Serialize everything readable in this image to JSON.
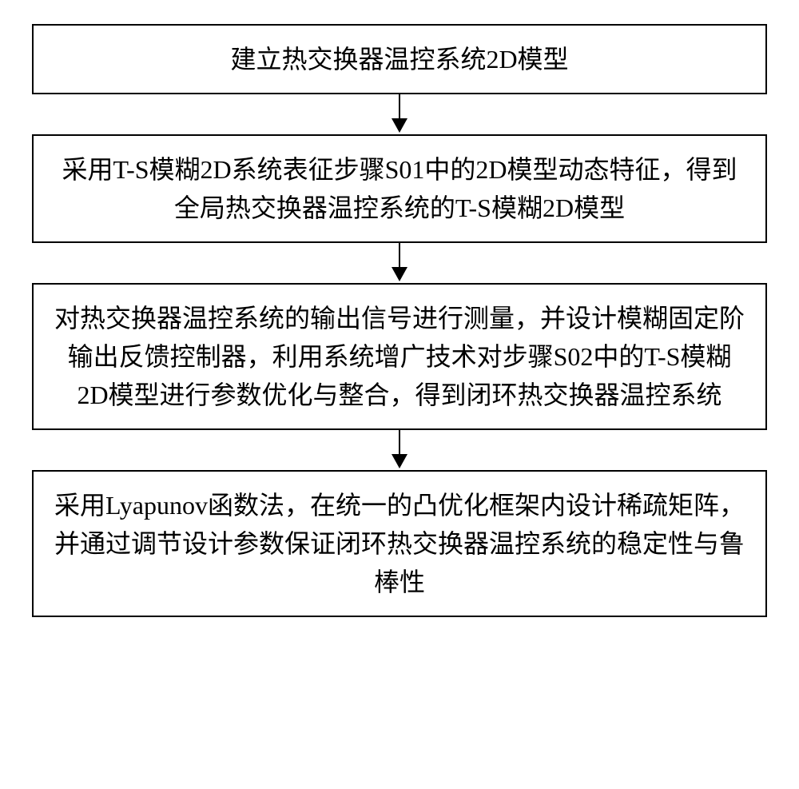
{
  "flowchart": {
    "type": "flowchart",
    "direction": "vertical",
    "background_color": "#ffffff",
    "box_border_color": "#000000",
    "box_border_width": 2,
    "box_background": "#ffffff",
    "text_color": "#000000",
    "font_size": 32,
    "font_family": "SimSun",
    "arrow_color": "#000000",
    "arrow_line_width": 2,
    "arrow_head_width": 20,
    "arrow_head_height": 18,
    "arrow_gap": 50,
    "nodes": [
      {
        "id": "step1",
        "text": "建立热交换器温控系统2D模型",
        "lines": 1
      },
      {
        "id": "step2",
        "text": "采用T-S模糊2D系统表征步骤S01中的2D模型动态特征，得到全局热交换器温控系统的T-S模糊2D模型",
        "lines": 3
      },
      {
        "id": "step3",
        "text": "对热交换器温控系统的输出信号进行测量，并设计模糊固定阶输出反馈控制器，利用系统增广技术对步骤S02中的T-S模糊2D模型进行参数优化与整合，得到闭环热交换器温控系统",
        "lines": 5
      },
      {
        "id": "step4",
        "text": "采用Lyapunov函数法，在统一的凸优化框架内设计稀疏矩阵，并通过调节设计参数保证闭环热交换器温控系统的稳定性与鲁棒性",
        "lines": 3
      }
    ],
    "edges": [
      {
        "from": "step1",
        "to": "step2"
      },
      {
        "from": "step2",
        "to": "step3"
      },
      {
        "from": "step3",
        "to": "step4"
      }
    ]
  }
}
